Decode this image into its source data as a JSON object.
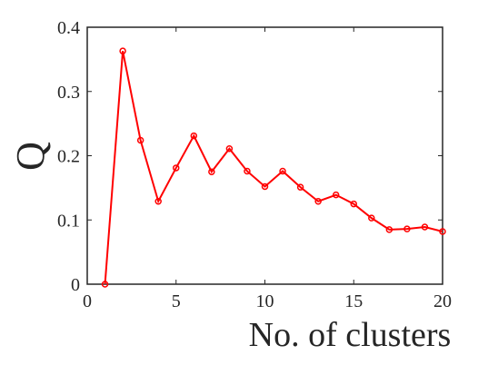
{
  "chart_data": {
    "type": "line",
    "xlabel": "No. of clusters",
    "ylabel": "Q",
    "x": [
      1,
      2,
      3,
      4,
      5,
      6,
      7,
      8,
      9,
      10,
      11,
      12,
      13,
      14,
      15,
      16,
      17,
      18,
      19,
      20
    ],
    "series": [
      {
        "name": "Q",
        "color": "#ff0000",
        "values": [
          0,
          0.363,
          0.224,
          0.129,
          0.181,
          0.231,
          0.175,
          0.211,
          0.176,
          0.152,
          0.176,
          0.151,
          0.129,
          0.139,
          0.125,
          0.103,
          0.085,
          0.086,
          0.089,
          0.082
        ]
      }
    ],
    "xlim": [
      0,
      20
    ],
    "xticks": [
      0,
      5,
      10,
      15,
      20
    ],
    "ylim": [
      0,
      0.4
    ],
    "yticks": [
      0,
      0.1,
      0.2,
      0.3,
      0.4
    ],
    "grid": false,
    "box": true,
    "markers": true
  }
}
